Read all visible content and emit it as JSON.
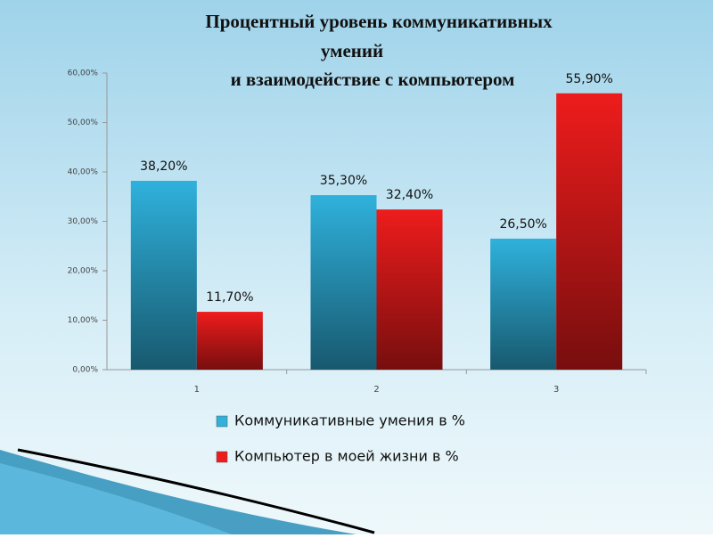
{
  "chart_data": {
    "type": "bar",
    "title": [
      "Процентный уровень коммуникативных",
      "умений",
      "и взаимодействие с компьютером"
    ],
    "categories": [
      "1",
      "2",
      "3"
    ],
    "series": [
      {
        "name": "Коммуникативные умения в %",
        "color": "#2fb1dc",
        "values": [
          38.2,
          35.3,
          26.5
        ],
        "value_labels": [
          "38,20%",
          "35,30%",
          "26,50%"
        ]
      },
      {
        "name": "Компьютер в моей жизни  в %",
        "color": "#ee1c1c",
        "values": [
          11.7,
          32.4,
          55.9
        ],
        "value_labels": [
          "11,70%",
          "32,40%",
          "55,90%"
        ]
      }
    ],
    "ylim": [
      0,
      60
    ],
    "yticks": [
      {
        "value": 0,
        "label": "0,00%"
      },
      {
        "value": 10,
        "label": "10,00%"
      },
      {
        "value": 20,
        "label": "20,00%"
      },
      {
        "value": 30,
        "label": "30,00%"
      },
      {
        "value": 40,
        "label": "40,00%"
      },
      {
        "value": 50,
        "label": "50,00%"
      },
      {
        "value": 60,
        "label": "60,00%"
      }
    ],
    "grid": false,
    "legend": "bottom"
  }
}
